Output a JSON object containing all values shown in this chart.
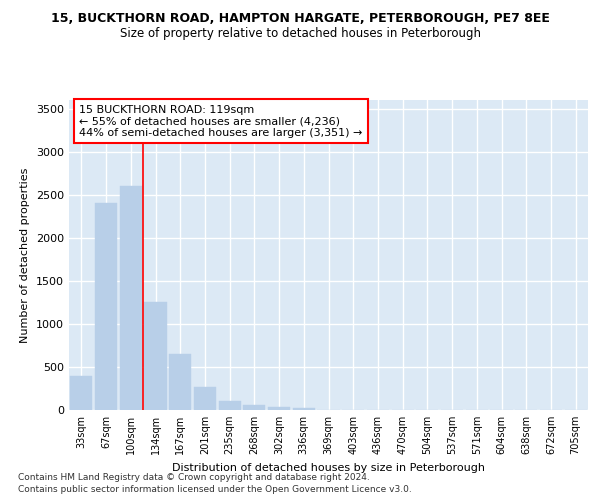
{
  "title_line1": "15, BUCKTHORN ROAD, HAMPTON HARGATE, PETERBOROUGH, PE7 8EE",
  "title_line2": "Size of property relative to detached houses in Peterborough",
  "xlabel": "Distribution of detached houses by size in Peterborough",
  "ylabel": "Number of detached properties",
  "categories": [
    "33sqm",
    "67sqm",
    "100sqm",
    "134sqm",
    "167sqm",
    "201sqm",
    "235sqm",
    "268sqm",
    "302sqm",
    "336sqm",
    "369sqm",
    "403sqm",
    "436sqm",
    "470sqm",
    "504sqm",
    "537sqm",
    "571sqm",
    "604sqm",
    "638sqm",
    "672sqm",
    "705sqm"
  ],
  "values": [
    400,
    2400,
    2600,
    1250,
    650,
    270,
    100,
    55,
    40,
    25,
    0,
    0,
    0,
    0,
    0,
    0,
    0,
    0,
    0,
    0,
    0
  ],
  "bar_color": "#b8cfe8",
  "bar_edge_color": "#b8cfe8",
  "vline_x": 3,
  "annotation_text": "15 BUCKTHORN ROAD: 119sqm\n← 55% of detached houses are smaller (4,236)\n44% of semi-detached houses are larger (3,351) →",
  "annotation_box_color": "white",
  "annotation_box_edge_color": "red",
  "vline_color": "red",
  "ylim": [
    0,
    3600
  ],
  "yticks": [
    0,
    500,
    1000,
    1500,
    2000,
    2500,
    3000,
    3500
  ],
  "background_color": "#dce9f5",
  "grid_color": "white",
  "footer_line1": "Contains HM Land Registry data © Crown copyright and database right 2024.",
  "footer_line2": "Contains public sector information licensed under the Open Government Licence v3.0."
}
